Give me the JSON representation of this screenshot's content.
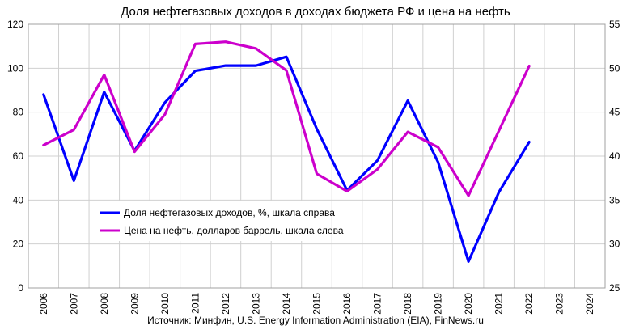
{
  "chart_data": {
    "type": "line",
    "title": "Доля нефтегазовых доходов в доходах бюджета РФ и цена на нефть",
    "source": "Источник: Минфин, U.S. Energy Information Administration (EIA), FinNews.ru",
    "categories": [
      "2006",
      "2007",
      "2008",
      "2009",
      "2010",
      "2011",
      "2012",
      "2013",
      "2014",
      "2015",
      "2016",
      "2017",
      "2018",
      "2019",
      "2020",
      "2021",
      "2022",
      "2023",
      "2024"
    ],
    "y_left": {
      "min": 0,
      "max": 120,
      "step": 20
    },
    "y_right": {
      "min": 25,
      "max": 55,
      "step": 5
    },
    "grid": true,
    "legend_position": "bottom-left inside plot",
    "series": [
      {
        "name": "Доля нефтегазовых доходов, %, шкала справа",
        "axis": "right",
        "color": "#0000ff",
        "values": [
          47,
          37.2,
          47.3,
          40.6,
          46.1,
          49.7,
          50.3,
          50.3,
          51.3,
          43.1,
          36.1,
          39.5,
          46.3,
          39.3,
          28,
          35.9,
          41.6,
          null,
          null
        ]
      },
      {
        "name": "Цена на нефть, долларов баррель, шкала слева",
        "axis": "left",
        "color": "#cc00cc",
        "values": [
          65,
          72,
          97,
          62,
          79,
          111,
          112,
          109,
          99,
          52,
          44,
          54,
          71,
          64,
          42,
          null,
          101,
          null,
          null
        ]
      }
    ]
  }
}
